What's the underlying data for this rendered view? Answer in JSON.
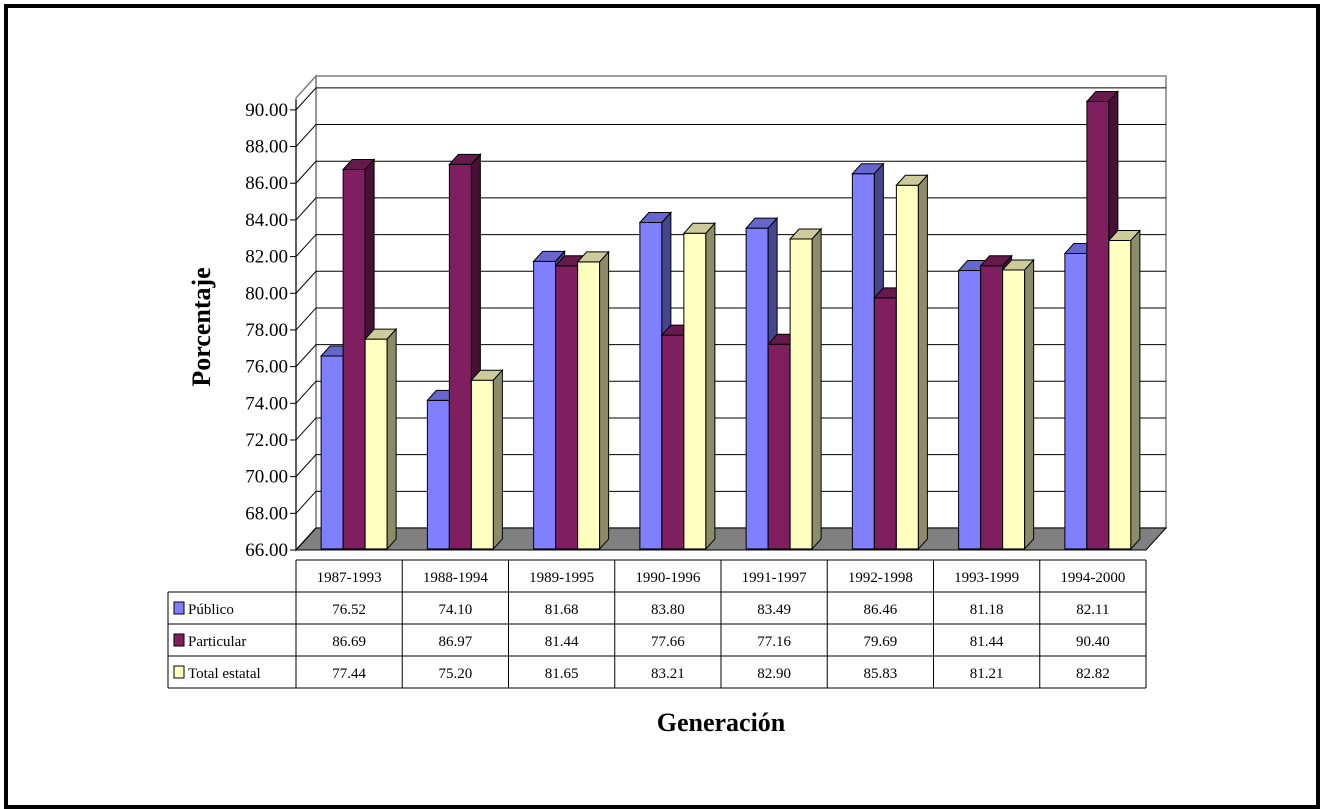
{
  "chart_data": {
    "type": "bar",
    "style": "3d-clustered-bar-with-data-table",
    "title": "",
    "xlabel": "Generación",
    "ylabel": "Porcentaje",
    "ylim": [
      66,
      90
    ],
    "y_ticks": [
      "66.00",
      "68.00",
      "70.00",
      "72.00",
      "74.00",
      "76.00",
      "78.00",
      "80.00",
      "82.00",
      "84.00",
      "86.00",
      "88.00",
      "90.00"
    ],
    "grid": true,
    "categories": [
      "1987-1993",
      "1988-1994",
      "1989-1995",
      "1990-1996",
      "1991-1997",
      "1992-1998",
      "1993-1999",
      "1994-2000"
    ],
    "series": [
      {
        "name": "Público",
        "color": "#7f7fff",
        "values": [
          76.52,
          74.1,
          81.68,
          83.8,
          83.49,
          86.46,
          81.18,
          82.11
        ],
        "labels": [
          "76.52",
          "74.10",
          "81.68",
          "83.80",
          "83.49",
          "86.46",
          "81.18",
          "82.11"
        ]
      },
      {
        "name": "Particular",
        "color": "#7f1f5f",
        "values": [
          86.69,
          86.97,
          81.44,
          77.66,
          77.16,
          79.69,
          81.44,
          90.4
        ],
        "labels": [
          "86.69",
          "86.97",
          "81.44",
          "77.66",
          "77.16",
          "79.69",
          "81.44",
          "90.40"
        ]
      },
      {
        "name": "Total estatal",
        "color": "#ffffc0",
        "values": [
          77.44,
          75.2,
          81.65,
          83.21,
          82.9,
          85.83,
          81.21,
          82.82
        ],
        "labels": [
          "77.44",
          "75.20",
          "81.65",
          "83.21",
          "82.90",
          "85.83",
          "81.21",
          "82.82"
        ]
      }
    ]
  }
}
